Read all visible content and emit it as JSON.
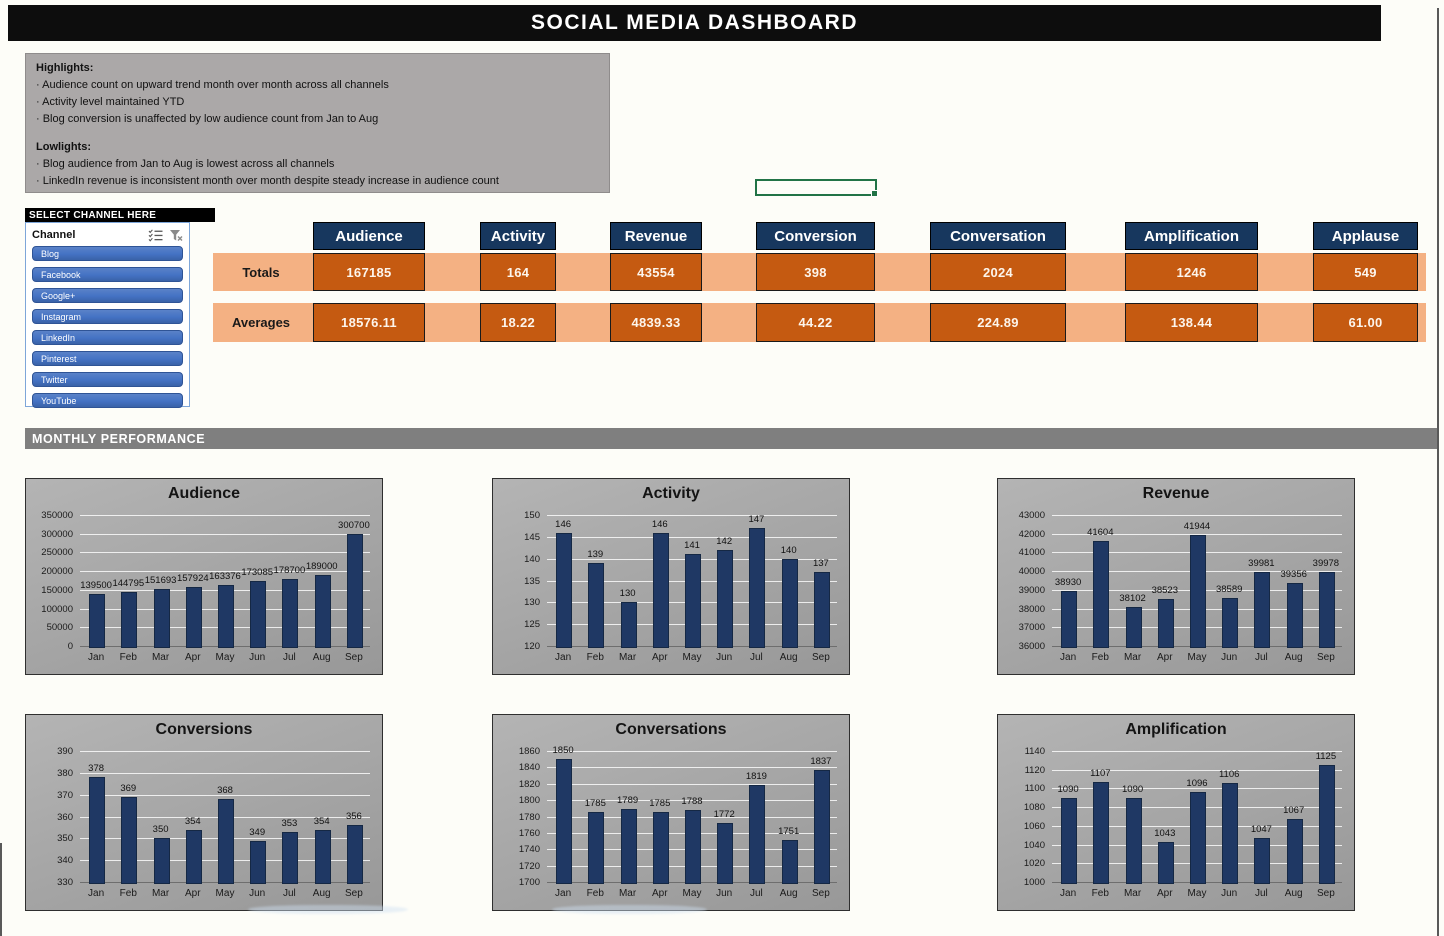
{
  "header": {
    "title": "SOCIAL MEDIA DASHBOARD"
  },
  "notes": {
    "highlights_label": "Highlights:",
    "highlights": [
      "· Audience count on upward trend month over month across all channels",
      "· Activity level maintained YTD",
      "· Blog conversion is unaffected by low audience count from Jan to Aug"
    ],
    "lowlights_label": "Lowlights:",
    "lowlights": [
      "· Blog audience from Jan to Aug is lowest across all channels",
      "· LinkedIn revenue is inconsistent month over month despite steady increase in audience count"
    ]
  },
  "slicer": {
    "header": "SELECT CHANNEL HERE",
    "field_label": "Channel",
    "icons": [
      "multi-select-icon",
      "clear-filter-icon"
    ],
    "items": [
      "Blog",
      "Facebook",
      "Google+",
      "Instagram",
      "LinkedIn",
      "Pinterest",
      "Twitter",
      "YouTube"
    ]
  },
  "kpi": {
    "totals_label": "Totals",
    "averages_label": "Averages",
    "columns": [
      {
        "label": "Audience",
        "total": "167185",
        "average": "18576.11"
      },
      {
        "label": "Activity",
        "total": "164",
        "average": "18.22"
      },
      {
        "label": "Revenue",
        "total": "43554",
        "average": "4839.33"
      },
      {
        "label": "Conversion",
        "total": "398",
        "average": "44.22"
      },
      {
        "label": "Conversation",
        "total": "2024",
        "average": "224.89"
      },
      {
        "label": "Amplification",
        "total": "1246",
        "average": "138.44"
      },
      {
        "label": "Applause",
        "total": "549",
        "average": "61.00"
      }
    ]
  },
  "section": {
    "title": "MONTHLY PERFORMANCE"
  },
  "chart_data": [
    {
      "type": "bar",
      "title": "Audience",
      "categories": [
        "Jan",
        "Feb",
        "Mar",
        "Apr",
        "May",
        "Jun",
        "Jul",
        "Aug",
        "Sep"
      ],
      "values": [
        139500,
        144795,
        151693,
        157924,
        163376,
        173085,
        178700,
        189000,
        300700
      ],
      "xlabel": "",
      "ylabel": "",
      "ylim": [
        0,
        350000
      ],
      "ystep": 50000,
      "grid": true,
      "legend": "none"
    },
    {
      "type": "bar",
      "title": "Activity",
      "categories": [
        "Jan",
        "Feb",
        "Mar",
        "Apr",
        "May",
        "Jun",
        "Jul",
        "Aug",
        "Sep"
      ],
      "values": [
        146,
        139,
        130,
        146,
        141,
        142,
        147,
        140,
        137
      ],
      "xlabel": "",
      "ylabel": "",
      "ylim": [
        120,
        150
      ],
      "ystep": 5,
      "grid": true,
      "legend": "none"
    },
    {
      "type": "bar",
      "title": "Revenue",
      "categories": [
        "Jan",
        "Feb",
        "Mar",
        "Apr",
        "May",
        "Jun",
        "Jul",
        "Aug",
        "Sep"
      ],
      "values": [
        38930,
        41604,
        38102,
        38523,
        41944,
        38589,
        39981,
        39356,
        39978
      ],
      "xlabel": "",
      "ylabel": "",
      "ylim": [
        36000,
        43000
      ],
      "ystep": 1000,
      "grid": true,
      "legend": "none"
    },
    {
      "type": "bar",
      "title": "Conversions",
      "categories": [
        "Jan",
        "Feb",
        "Mar",
        "Apr",
        "May",
        "Jun",
        "Jul",
        "Aug",
        "Sep"
      ],
      "values": [
        378,
        369,
        350,
        354,
        368,
        349,
        353,
        354,
        356
      ],
      "xlabel": "",
      "ylabel": "",
      "ylim": [
        330,
        390
      ],
      "ystep": 10,
      "grid": true,
      "legend": "none"
    },
    {
      "type": "bar",
      "title": "Conversations",
      "categories": [
        "Jan",
        "Feb",
        "Mar",
        "Apr",
        "May",
        "Jun",
        "Jul",
        "Aug",
        "Sep"
      ],
      "values": [
        1850,
        1785,
        1789,
        1785,
        1788,
        1772,
        1819,
        1751,
        1837
      ],
      "xlabel": "",
      "ylabel": "",
      "ylim": [
        1700,
        1860
      ],
      "ystep": 20,
      "grid": true,
      "legend": "none"
    },
    {
      "type": "bar",
      "title": "Amplification",
      "categories": [
        "Jan",
        "Feb",
        "Mar",
        "Apr",
        "May",
        "Jun",
        "Jul",
        "Aug",
        "Sep"
      ],
      "values": [
        1090,
        1107,
        1090,
        1043,
        1096,
        1106,
        1047,
        1067,
        1125
      ],
      "xlabel": "",
      "ylabel": "",
      "ylim": [
        1000,
        1140
      ],
      "ystep": 20,
      "grid": true,
      "legend": "none"
    }
  ],
  "colors": {
    "title_bg": "#0d0d0d",
    "kpi_header_navy": "#17375e",
    "kpi_value_orange": "#c55a11",
    "kpi_band_orange": "#f4b183",
    "slicer_blue": "#4472c4",
    "bar_navy": "#1f3864",
    "panel_gray": "#a6a6a6",
    "section_gray": "#7f7f7f",
    "selection_green": "#217346"
  }
}
